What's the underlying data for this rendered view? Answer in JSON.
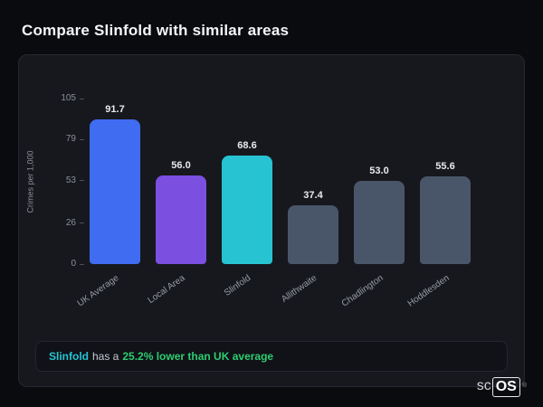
{
  "page": {
    "title": "Compare Slinfold with similar areas"
  },
  "chart_data": {
    "type": "bar",
    "categories": [
      "UK Average",
      "Local Area",
      "Slinfold",
      "Allithwaite",
      "Chadlington",
      "Hoddlesden"
    ],
    "values": [
      91.7,
      56.0,
      68.6,
      37.4,
      53.0,
      55.6
    ],
    "bar_colors": [
      "#3f6cf0",
      "#7b4fe0",
      "#27c3d2",
      "#49566a",
      "#49566a",
      "#49566a"
    ],
    "title": "Compare Slinfold with similar areas",
    "xlabel": "",
    "ylabel": "Crimes per 1,000",
    "yticks": [
      0,
      26,
      53,
      79,
      105
    ],
    "ylim": [
      0,
      105
    ],
    "grid": "off",
    "legend": "none"
  },
  "summary": {
    "area": "Slinfold",
    "middle": "has a",
    "highlight": "25.2% lower than UK average",
    "area_color": "#27c3d2",
    "highlight_color": "#2ecc71"
  },
  "branding": {
    "prefix": "sc",
    "suffix": "OS",
    "registered": "®"
  }
}
